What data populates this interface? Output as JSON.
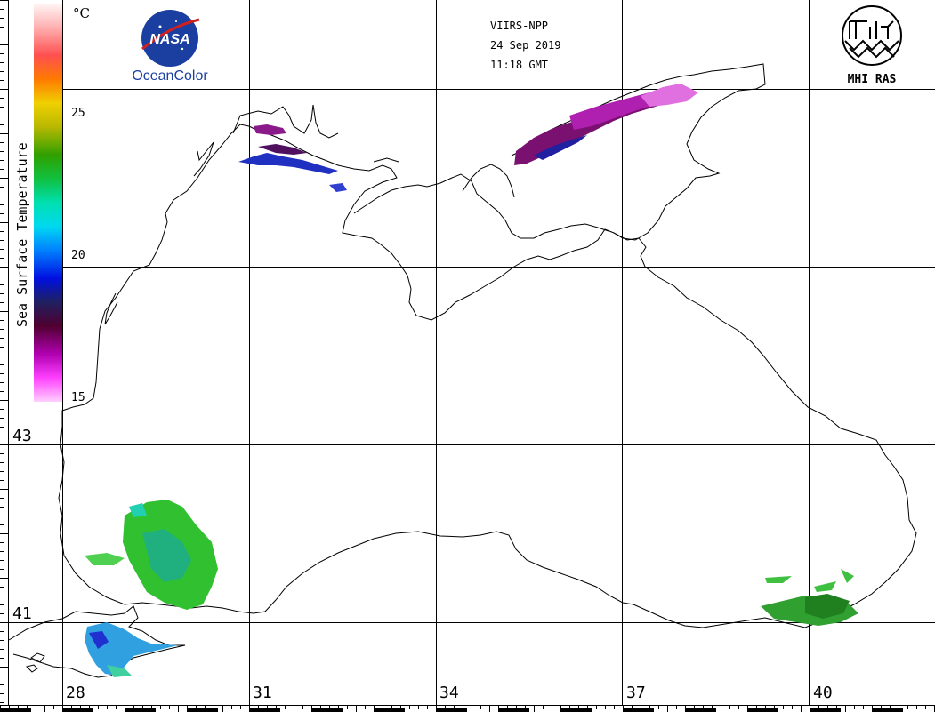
{
  "header": {
    "satellite": "VIIRS-NPP",
    "date": "24 Sep 2019",
    "time": "11:18 GMT"
  },
  "logos": {
    "left_mark": "NASA",
    "left_caption": "OceanColor",
    "right_caption": "MHI RAS"
  },
  "legend": {
    "title": "Sea Surface Temperature",
    "unit": "°C",
    "ticks": [
      "25",
      "20",
      "15"
    ],
    "tick_values": [
      25,
      20,
      15
    ],
    "range": [
      15,
      29
    ],
    "colors": [
      "#ffffff",
      "#ffc0cb",
      "#ff6060",
      "#ff7a00",
      "#f0d000",
      "#b0c000",
      "#40c000",
      "#00c060",
      "#00e0e0",
      "#00a0ff",
      "#0020ff",
      "#101070",
      "#400040",
      "#a000a0",
      "#ff40ff",
      "#ffc0ff"
    ]
  },
  "map": {
    "longitude_labels": [
      "28",
      "31",
      "34",
      "37",
      "40"
    ],
    "latitude_labels": [
      "43",
      "41"
    ],
    "coastline_color": "#000000",
    "grid_color": "#000000"
  }
}
